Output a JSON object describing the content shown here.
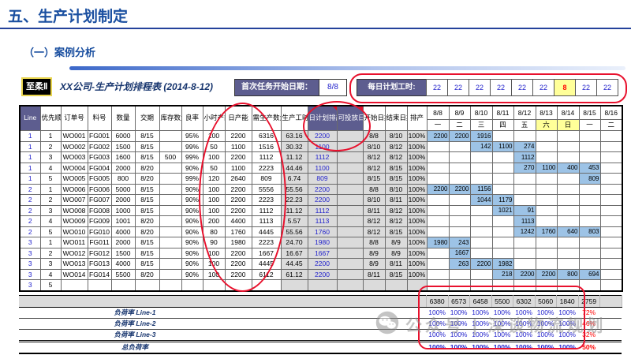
{
  "slide": {
    "title": "五、生产计划制定",
    "subtitle": "（一）案例分析"
  },
  "sheet": {
    "badge": "至柔Ⅱ",
    "doc_title": "XX公司-生产计划排程表 (2014-8-12)",
    "first_task_label": "首次任务开始日期：",
    "first_task_value": "8/8",
    "daily_hours_label": "每日计划工时:",
    "daily_hours": [
      "22",
      "22",
      "22",
      "22",
      "22",
      "22",
      "8",
      "22",
      "22"
    ],
    "daily_hours_highlight_index": 6
  },
  "table": {
    "headers": [
      "Line",
      "优先顺序",
      "订单号",
      "料号",
      "数量",
      "交期",
      "库存数量",
      "良率",
      "小时产能",
      "日产能",
      "需生产数量",
      "生产工时",
      "日计划排产量",
      "可投放日期",
      "开始日期",
      "结束日期",
      "排产"
    ],
    "dates": [
      "8/8",
      "8/9",
      "8/10",
      "8/11",
      "8/12",
      "8/13",
      "8/14",
      "8/15",
      "8/16"
    ],
    "weekdays": [
      "一",
      "二",
      "三",
      "四",
      "五",
      "六",
      "日",
      "一",
      "二"
    ],
    "weekend_indices": [
      5,
      6
    ],
    "rows": [
      {
        "cells": [
          "1",
          "1",
          "WO001",
          "FG001",
          "6000",
          "8/15",
          "",
          "95%",
          "100",
          "2200",
          "6316",
          "63.16",
          "2200",
          "",
          "8/8",
          "8/10",
          "100%"
        ],
        "gantt": [
          "2200",
          "2200",
          "1916",
          "",
          "",
          "",
          "",
          "",
          ""
        ]
      },
      {
        "cells": [
          "1",
          "2",
          "WO002",
          "FG002",
          "1500",
          "8/15",
          "",
          "99%",
          "50",
          "1100",
          "1516",
          "30.32",
          "1100",
          "",
          "8/10",
          "8/12",
          "100%"
        ],
        "gantt": [
          "",
          "",
          "142",
          "1100",
          "274",
          "",
          "",
          "",
          ""
        ]
      },
      {
        "cells": [
          "1",
          "3",
          "WO003",
          "FG003",
          "1600",
          "8/15",
          "500",
          "99%",
          "100",
          "2200",
          "1112",
          "11.12",
          "1112",
          "",
          "8/12",
          "8/12",
          "100%"
        ],
        "gantt": [
          "",
          "",
          "",
          "",
          "1112",
          "",
          "",
          "",
          ""
        ]
      },
      {
        "cells": [
          "1",
          "4",
          "WO004",
          "FG004",
          "2000",
          "8/20",
          "",
          "90%",
          "50",
          "1100",
          "2223",
          "44.46",
          "1100",
          "",
          "8/12",
          "8/15",
          "100%"
        ],
        "gantt": [
          "",
          "",
          "",
          "",
          "270",
          "1100",
          "400",
          "453",
          ""
        ]
      },
      {
        "cells": [
          "1",
          "5",
          "WO005",
          "FG005",
          "800",
          "8/20",
          "",
          "99%",
          "120",
          "2640",
          "809",
          "6.74",
          "809",
          "",
          "8/15",
          "8/15",
          "100%"
        ],
        "gantt": [
          "",
          "",
          "",
          "",
          "",
          "",
          "",
          "809",
          ""
        ]
      },
      {
        "cells": [
          "2",
          "1",
          "WO006",
          "FG006",
          "5000",
          "8/15",
          "",
          "90%",
          "100",
          "2200",
          "5556",
          "55.56",
          "2200",
          "",
          "8/8",
          "8/10",
          "100%"
        ],
        "gantt": [
          "2200",
          "2200",
          "1156",
          "",
          "",
          "",
          "",
          "",
          ""
        ]
      },
      {
        "cells": [
          "2",
          "2",
          "WO007",
          "FG007",
          "2000",
          "8/15",
          "",
          "90%",
          "100",
          "2200",
          "2223",
          "22.23",
          "2200",
          "",
          "8/10",
          "8/11",
          "100%"
        ],
        "gantt": [
          "",
          "",
          "1044",
          "1179",
          "",
          "",
          "",
          "",
          ""
        ]
      },
      {
        "cells": [
          "2",
          "3",
          "WO008",
          "FG008",
          "1000",
          "8/15",
          "",
          "90%",
          "100",
          "2200",
          "1112",
          "11.12",
          "1112",
          "",
          "8/11",
          "8/12",
          "100%"
        ],
        "gantt": [
          "",
          "",
          "",
          "1021",
          "91",
          "",
          "",
          "",
          ""
        ]
      },
      {
        "cells": [
          "2",
          "4",
          "WO009",
          "FG009",
          "1001",
          "8/20",
          "",
          "90%",
          "200",
          "4400",
          "1113",
          "5.57",
          "1113",
          "",
          "8/12",
          "8/12",
          "100%"
        ],
        "gantt": [
          "",
          "",
          "",
          "",
          "1113",
          "",
          "",
          "",
          ""
        ]
      },
      {
        "cells": [
          "2",
          "5",
          "WO010",
          "FG010",
          "4000",
          "8/20",
          "",
          "90%",
          "80",
          "1760",
          "4445",
          "55.56",
          "1760",
          "",
          "8/12",
          "8/15",
          "100%"
        ],
        "gantt": [
          "",
          "",
          "",
          "",
          "1242",
          "1760",
          "640",
          "803",
          ""
        ]
      },
      {
        "cells": [
          "3",
          "1",
          "WO011",
          "FG011",
          "2000",
          "8/15",
          "",
          "90%",
          "90",
          "1980",
          "2223",
          "24.70",
          "1980",
          "",
          "8/8",
          "8/9",
          "100%"
        ],
        "gantt": [
          "1980",
          "243",
          "",
          "",
          "",
          "",
          "",
          "",
          ""
        ]
      },
      {
        "cells": [
          "3",
          "2",
          "WO012",
          "FG012",
          "1500",
          "8/15",
          "",
          "90%",
          "100",
          "2200",
          "1667",
          "16.67",
          "1667",
          "",
          "8/9",
          "8/9",
          "100%"
        ],
        "gantt": [
          "",
          "1667",
          "",
          "",
          "",
          "",
          "",
          "",
          ""
        ]
      },
      {
        "cells": [
          "3",
          "3",
          "WO013",
          "FG013",
          "4000",
          "8/15",
          "",
          "90%",
          "100",
          "2200",
          "4445",
          "44.45",
          "2200",
          "",
          "8/9",
          "8/11",
          "100%"
        ],
        "gantt": [
          "",
          "263",
          "2200",
          "1982",
          "",
          "",
          "",
          "",
          ""
        ]
      },
      {
        "cells": [
          "3",
          "4",
          "WO014",
          "FG014",
          "5500",
          "8/20",
          "",
          "90%",
          "100",
          "2200",
          "6112",
          "61.12",
          "2200",
          "",
          "8/11",
          "8/15",
          "100%"
        ],
        "gantt": [
          "",
          "",
          "",
          "218",
          "2200",
          "2200",
          "800",
          "694",
          ""
        ]
      },
      {
        "cells": [
          "3",
          "5",
          "",
          "",
          "",
          "",
          "",
          "",
          "",
          "",
          "",
          "",
          "",
          "",
          "",
          "",
          ""
        ],
        "gantt": [
          "",
          "",
          "",
          "",
          "",
          "",
          "",
          "",
          ""
        ]
      }
    ]
  },
  "summary": {
    "totals": [
      "6380",
      "6573",
      "6458",
      "5500",
      "6302",
      "5060",
      "1840",
      "2759",
      ""
    ],
    "load_rows": [
      {
        "label": "负荷率 Line-1",
        "values": [
          "100%",
          "100%",
          "100%",
          "100%",
          "100%",
          "100%",
          "100%",
          "72%",
          ""
        ]
      },
      {
        "label": "负荷率 Line-2",
        "values": [
          "100%",
          "100%",
          "100%",
          "100%",
          "100%",
          "100%",
          "100%",
          "46%",
          ""
        ]
      },
      {
        "label": "负荷率 Line-3",
        "values": [
          "100%",
          "100%",
          "100%",
          "100%",
          "100%",
          "100%",
          "100%",
          "32%",
          ""
        ]
      }
    ],
    "grand_row": {
      "label": "总负荷率",
      "values": [
        "100%",
        "100%",
        "100%",
        "100%",
        "100%",
        "100%",
        "100%",
        "50%",
        ""
      ]
    }
  },
  "watermark": {
    "icon": "wechat-icon",
    "text": "公众号 | 深谈物流规划"
  },
  "colors": {
    "title_navy": "#1A4FA0",
    "header_slate": "#5D5D8F",
    "gantt_blue": "#9DC3E6",
    "highlight_yellow": "#FFFF99",
    "cell_gray": "#DBDBDB",
    "value_blue": "#2222CC",
    "alert_red": "#FF0000",
    "annotation_red": "#E8112D"
  }
}
